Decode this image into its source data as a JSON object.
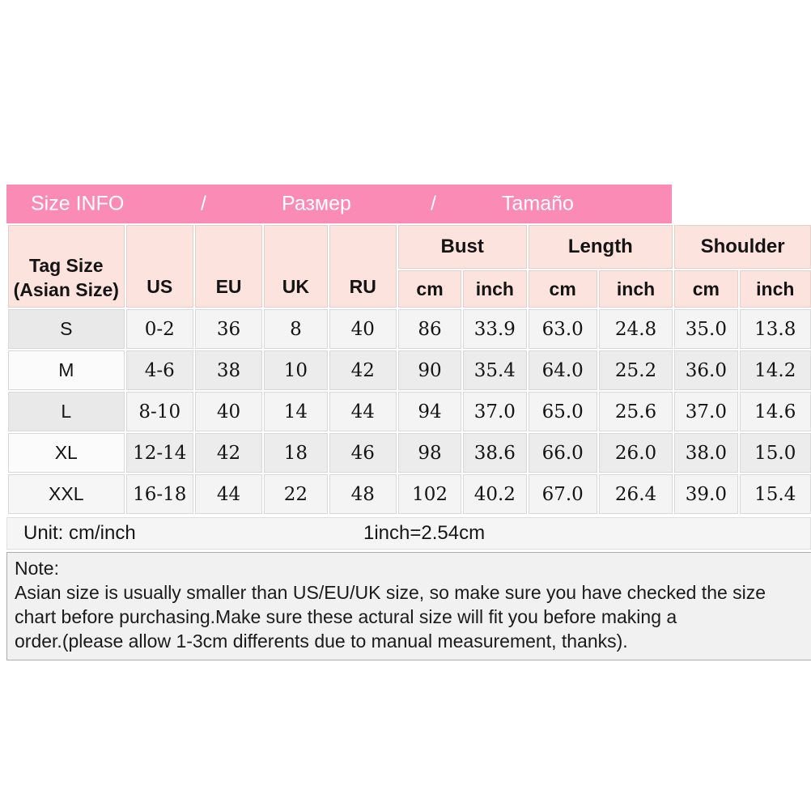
{
  "banner": {
    "title_en": "Size INFO",
    "separator1": "/",
    "title_ru": "Размер",
    "separator2": "/",
    "title_es": "Tamaño"
  },
  "table": {
    "tag_header_line1": "Tag Size",
    "tag_header_line2": "(Asian Size)",
    "region_headers": [
      "US",
      "EU",
      "UK",
      "RU"
    ],
    "group_headers": [
      "Bust",
      "Length",
      "Shoulder"
    ],
    "unit_subheaders": [
      "cm",
      "inch"
    ],
    "rows": [
      {
        "tag": "S",
        "us": "0-2",
        "eu": "36",
        "uk": "8",
        "ru": "40",
        "bust_cm": "86",
        "bust_inch": "33.9",
        "length_cm": "63.0",
        "length_inch": "24.8",
        "shoulder_cm": "35.0",
        "shoulder_inch": "13.8"
      },
      {
        "tag": "M",
        "us": "4-6",
        "eu": "38",
        "uk": "10",
        "ru": "42",
        "bust_cm": "90",
        "bust_inch": "35.4",
        "length_cm": "64.0",
        "length_inch": "25.2",
        "shoulder_cm": "36.0",
        "shoulder_inch": "14.2"
      },
      {
        "tag": "L",
        "us": "8-10",
        "eu": "40",
        "uk": "14",
        "ru": "44",
        "bust_cm": "94",
        "bust_inch": "37.0",
        "length_cm": "65.0",
        "length_inch": "25.6",
        "shoulder_cm": "37.0",
        "shoulder_inch": "14.6"
      },
      {
        "tag": "XL",
        "us": "12-14",
        "eu": "42",
        "uk": "18",
        "ru": "46",
        "bust_cm": "98",
        "bust_inch": "38.6",
        "length_cm": "66.0",
        "length_inch": "26.0",
        "shoulder_cm": "38.0",
        "shoulder_inch": "15.0"
      },
      {
        "tag": "XXL",
        "us": "16-18",
        "eu": "44",
        "uk": "22",
        "ru": "48",
        "bust_cm": "102",
        "bust_inch": "40.2",
        "length_cm": "67.0",
        "length_inch": "26.4",
        "shoulder_cm": "39.0",
        "shoulder_inch": "15.4"
      }
    ]
  },
  "unit_row": {
    "label": "Unit: cm/inch",
    "conversion": "1inch=2.54cm"
  },
  "note": {
    "title": "Note:",
    "lines": [
      "Asian size is usually smaller than US/EU/UK size, so make sure you have checked the size",
      "chart before purchasing.Make sure these actural size will fit you before making a",
      "order.(please allow 1-3cm differents due to manual measurement, thanks)."
    ]
  },
  "colors": {
    "banner_pink": "#fa8bb4",
    "header_pink": "#fce3dd",
    "row_light": "#f4f4f4",
    "row_gray": "#ececec"
  }
}
